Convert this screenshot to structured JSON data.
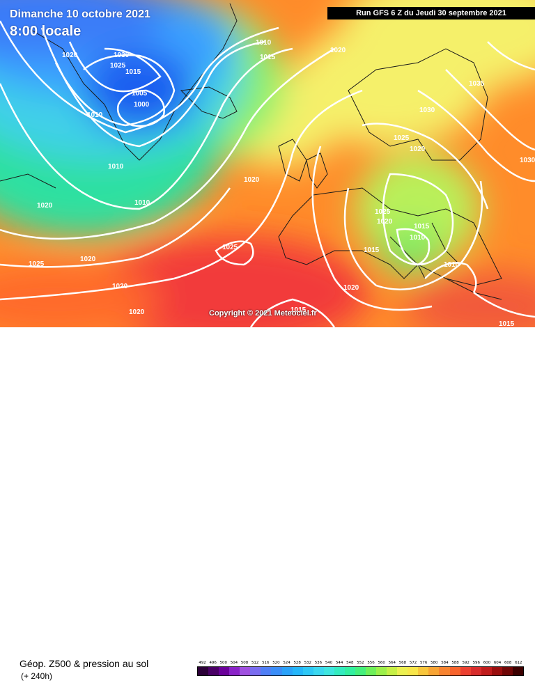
{
  "header": {
    "date": "Dimanche 10 octobre 2021",
    "local_time": "8:00 locale",
    "run_info": "Run GFS 6 Z du Jeudi 30 septembre 2021"
  },
  "map": {
    "copyright": "Copyright © 2021 Meteociel.fr",
    "isobar_labels": [
      "1020",
      "1030",
      "1025",
      "1015",
      "1005",
      "1000",
      "1010",
      "1010",
      "1010",
      "1010",
      "1015",
      "1020",
      "1020",
      "1035",
      "1030",
      "1025",
      "1020",
      "1030",
      "1020",
      "1025",
      "1020",
      "1015",
      "1010",
      "1015",
      "1010",
      "1025",
      "1020",
      "1025",
      "1020",
      "1020",
      "1020",
      "1015",
      "1015"
    ],
    "colors": {
      "trough_core": "#1a5ff0",
      "trough_mid": "#3aa0ff",
      "trough_edge": "#6cd6ff",
      "mid_green": "#2fe0a0",
      "ridge_yellow": "#f5f06a",
      "ridge_orange": "#ff8c2a",
      "ridge_red": "#f23a3a",
      "isobar": "#ffffff",
      "coastline": "#1a1a1a"
    }
  },
  "legend": {
    "title": "Géop. Z500 & pression au sol",
    "subtitle": "(+ 240h)",
    "scale_labels": [
      "492",
      "496",
      "500",
      "504",
      "508",
      "512",
      "516",
      "520",
      "524",
      "528",
      "532",
      "536",
      "540",
      "544",
      "548",
      "552",
      "556",
      "560",
      "564",
      "568",
      "572",
      "576",
      "580",
      "584",
      "588",
      "592",
      "596",
      "600",
      "604",
      "608",
      "612"
    ],
    "scale_colors": [
      "#2b0037",
      "#4a0066",
      "#6a0099",
      "#8a22c8",
      "#a050e0",
      "#7a6cf0",
      "#4f7ff6",
      "#3a8df8",
      "#2aa2fa",
      "#24b6fa",
      "#2dc8f6",
      "#3ad8f0",
      "#3ee6e0",
      "#33ecc0",
      "#32f0a0",
      "#44f07c",
      "#6ef05a",
      "#9cf04a",
      "#c6f046",
      "#ecf050",
      "#f8e64a",
      "#f8c63c",
      "#f8a434",
      "#f88430",
      "#f8642c",
      "#ec4030",
      "#d82c2c",
      "#c01c1c",
      "#9a0e0e",
      "#700606",
      "#3c0000"
    ]
  }
}
